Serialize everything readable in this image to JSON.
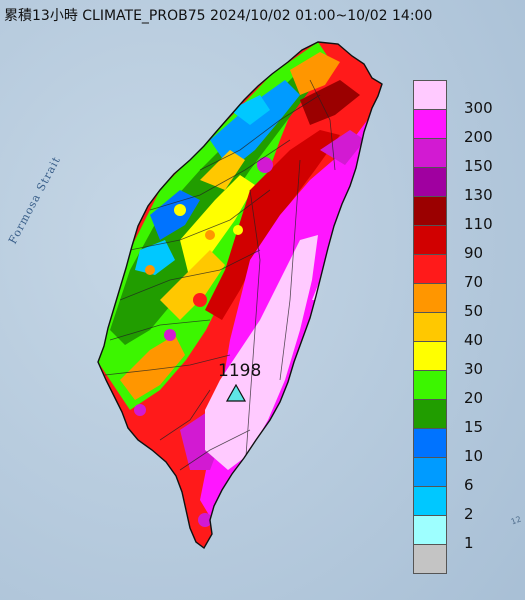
{
  "title": "累積13小時 CLIMATE_PROB75 2024/10/02 01:00~10/02 14:00",
  "sea_label": "Formosa Strait",
  "corner_text": "12",
  "station": {
    "label": "1198",
    "marker": "triangle-marker-icon",
    "marker_color": "#5fe6e6"
  },
  "legend": {
    "entries": [
      {
        "label": "300",
        "color": "#ffcaff"
      },
      {
        "label": "200",
        "color": "#ff16ff"
      },
      {
        "label": "150",
        "color": "#d21ad2"
      },
      {
        "label": "130",
        "color": "#a000a0"
      },
      {
        "label": "110",
        "color": "#9b0000"
      },
      {
        "label": "90",
        "color": "#d10000"
      },
      {
        "label": "70",
        "color": "#ff1a1a"
      },
      {
        "label": "50",
        "color": "#ff9600"
      },
      {
        "label": "40",
        "color": "#ffc800"
      },
      {
        "label": "30",
        "color": "#ffff00"
      },
      {
        "label": "20",
        "color": "#3cf600"
      },
      {
        "label": "15",
        "color": "#219d00"
      },
      {
        "label": "10",
        "color": "#0073ff"
      },
      {
        "label": "6",
        "color": "#009bff"
      },
      {
        "label": "2",
        "color": "#00c8ff"
      },
      {
        "label": "1",
        "color": "#9effff"
      },
      {
        "label": "",
        "color": "#c4c4c4"
      }
    ]
  },
  "colors": {
    "sea": "#b9cfe0",
    "land_east": "#ff16ff",
    "land_mountain": "#ffcaff"
  }
}
